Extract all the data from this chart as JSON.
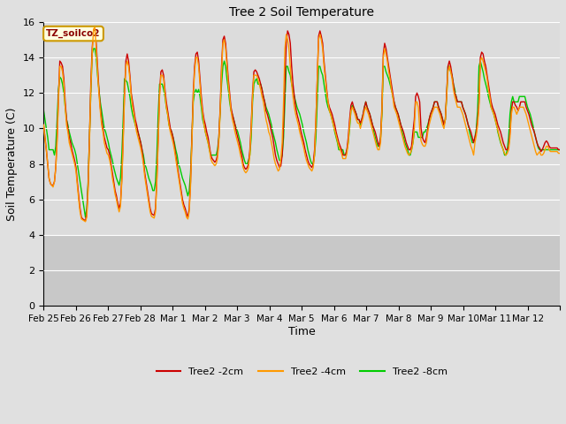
{
  "title": "Tree 2 Soil Temperature",
  "xlabel": "Time",
  "ylabel": "Soil Temperature (C)",
  "ylim": [
    0,
    16
  ],
  "yticks": [
    0,
    2,
    4,
    6,
    8,
    10,
    12,
    14,
    16
  ],
  "plot_bg_upper": "#dcdcdc",
  "plot_bg_lower": "#c8c8c8",
  "fig_bg_color": "#e0e0e0",
  "grid_color": "#ffffff",
  "line_colors": {
    "2cm": "#cc0000",
    "4cm": "#ff9900",
    "8cm": "#00cc00"
  },
  "legend_label_2cm": "Tree2 -2cm",
  "legend_label_4cm": "Tree2 -4cm",
  "legend_label_8cm": "Tree2 -8cm",
  "annotation_text": "TZ_soilco2",
  "xtick_labels": [
    "Feb 25",
    "Feb 26",
    "Feb 27",
    "Feb 28",
    "Mar 1",
    "Mar 2",
    "Mar 3",
    "Mar 4",
    "Mar 5",
    "Mar 6",
    "Mar 7",
    "Mar 8",
    "Mar 9",
    "Mar 10",
    "Mar 11",
    "Mar 12"
  ],
  "data_2cm": [
    10.2,
    9.5,
    8.8,
    8.0,
    7.2,
    6.9,
    6.8,
    6.8,
    7.0,
    7.8,
    9.5,
    11.8,
    13.8,
    13.7,
    13.5,
    12.8,
    11.5,
    10.5,
    10.0,
    9.5,
    9.2,
    8.8,
    8.5,
    8.2,
    7.8,
    7.0,
    6.2,
    5.5,
    5.0,
    4.9,
    4.85,
    4.8,
    5.2,
    6.8,
    9.5,
    12.5,
    14.5,
    15.5,
    15.6,
    14.8,
    13.5,
    12.2,
    11.2,
    10.5,
    10.0,
    9.5,
    9.2,
    8.9,
    8.8,
    8.5,
    8.0,
    7.5,
    7.0,
    6.5,
    6.2,
    5.8,
    5.5,
    5.8,
    7.2,
    9.5,
    12.0,
    13.8,
    14.2,
    13.8,
    13.0,
    12.0,
    11.5,
    11.0,
    10.5,
    10.2,
    9.8,
    9.5,
    9.2,
    8.8,
    8.2,
    7.5,
    7.0,
    6.5,
    6.0,
    5.5,
    5.2,
    5.15,
    5.1,
    5.5,
    7.2,
    9.5,
    12.0,
    13.2,
    13.3,
    13.0,
    12.2,
    11.5,
    11.0,
    10.5,
    10.0,
    9.8,
    9.5,
    9.0,
    8.5,
    8.0,
    7.5,
    7.0,
    6.5,
    6.0,
    5.7,
    5.5,
    5.2,
    5.0,
    5.5,
    7.0,
    9.5,
    12.0,
    13.5,
    14.2,
    14.3,
    13.8,
    12.8,
    11.8,
    11.0,
    10.5,
    10.2,
    9.8,
    9.5,
    9.0,
    8.5,
    8.3,
    8.2,
    8.1,
    8.2,
    8.5,
    9.5,
    11.2,
    13.5,
    15.0,
    15.2,
    14.8,
    13.8,
    12.8,
    12.0,
    11.2,
    10.8,
    10.5,
    10.2,
    9.8,
    9.5,
    9.2,
    8.8,
    8.5,
    8.0,
    7.8,
    7.7,
    7.8,
    8.0,
    8.8,
    10.2,
    12.0,
    13.2,
    13.3,
    13.2,
    13.0,
    12.8,
    12.5,
    12.2,
    11.8,
    11.5,
    11.0,
    10.8,
    10.5,
    10.2,
    9.8,
    9.5,
    9.0,
    8.5,
    8.2,
    8.0,
    7.8,
    7.9,
    8.5,
    10.2,
    12.5,
    14.8,
    15.5,
    15.3,
    14.8,
    13.5,
    12.5,
    11.8,
    11.2,
    10.8,
    10.5,
    10.2,
    9.8,
    9.5,
    9.2,
    8.8,
    8.5,
    8.2,
    8.0,
    7.9,
    7.8,
    8.0,
    8.8,
    10.5,
    12.8,
    15.2,
    15.5,
    15.2,
    14.8,
    13.8,
    13.0,
    12.2,
    11.5,
    11.2,
    11.0,
    10.8,
    10.5,
    10.2,
    9.8,
    9.5,
    9.2,
    9.0,
    8.8,
    8.5,
    8.5,
    8.5,
    8.8,
    9.5,
    10.5,
    11.3,
    11.5,
    11.2,
    11.0,
    10.8,
    10.5,
    10.5,
    10.3,
    10.5,
    10.8,
    11.2,
    11.5,
    11.2,
    11.0,
    10.8,
    10.5,
    10.2,
    10.0,
    9.8,
    9.5,
    9.2,
    9.0,
    9.5,
    11.2,
    14.2,
    14.8,
    14.5,
    14.0,
    13.5,
    13.0,
    12.5,
    12.0,
    11.5,
    11.2,
    11.0,
    10.8,
    10.5,
    10.2,
    10.0,
    9.8,
    9.5,
    9.2,
    9.0,
    8.8,
    8.8,
    9.0,
    9.8,
    10.5,
    11.8,
    12.0,
    11.8,
    11.5,
    10.0,
    9.5,
    9.3,
    9.2,
    9.5,
    10.0,
    10.5,
    10.8,
    11.0,
    11.2,
    11.5,
    11.5,
    11.5,
    11.2,
    11.0,
    10.8,
    10.5,
    10.2,
    10.5,
    12.0,
    13.5,
    13.8,
    13.5,
    13.0,
    12.5,
    12.0,
    11.8,
    11.5,
    11.5,
    11.5,
    11.5,
    11.2,
    11.0,
    10.8,
    10.5,
    10.2,
    10.0,
    9.8,
    9.5,
    9.2,
    9.5,
    9.8,
    10.5,
    11.5,
    14.0,
    14.3,
    14.2,
    13.8,
    13.5,
    13.0,
    12.5,
    12.0,
    11.5,
    11.2,
    11.0,
    10.8,
    10.5,
    10.2,
    10.0,
    9.8,
    9.5,
    9.2,
    9.0,
    8.8,
    8.8,
    9.0,
    9.8,
    11.0,
    11.5,
    11.5,
    11.3,
    11.2,
    11.0,
    11.2,
    11.5,
    11.5,
    11.5,
    11.5,
    11.2,
    11.0,
    10.8,
    10.5,
    10.2,
    10.0,
    9.8,
    9.5,
    9.2,
    9.0,
    8.9,
    8.7,
    8.8,
    9.0,
    9.2,
    9.3,
    9.2,
    9.0,
    8.9,
    8.9,
    8.9,
    8.9,
    8.9,
    8.9,
    8.8,
    8.8
  ],
  "data_4cm": [
    10.2,
    9.4,
    8.8,
    8.0,
    7.2,
    6.9,
    6.8,
    6.7,
    7.0,
    7.8,
    9.2,
    11.5,
    13.5,
    13.5,
    13.2,
    12.5,
    11.2,
    10.2,
    9.8,
    9.2,
    8.9,
    8.6,
    8.3,
    8.0,
    7.6,
    6.8,
    6.0,
    5.3,
    4.9,
    4.85,
    4.8,
    4.75,
    5.0,
    6.5,
    9.2,
    12.2,
    14.2,
    15.6,
    15.7,
    14.5,
    13.2,
    12.0,
    11.0,
    10.2,
    9.8,
    9.2,
    8.9,
    8.6,
    8.5,
    8.2,
    7.8,
    7.2,
    6.8,
    6.3,
    6.0,
    5.6,
    5.3,
    5.6,
    7.0,
    9.2,
    11.8,
    13.5,
    13.8,
    13.5,
    12.8,
    11.8,
    11.2,
    10.8,
    10.2,
    9.8,
    9.5,
    9.2,
    8.9,
    8.5,
    8.0,
    7.3,
    6.8,
    6.3,
    5.8,
    5.3,
    5.05,
    5.0,
    4.95,
    5.3,
    7.0,
    9.2,
    11.8,
    13.0,
    13.0,
    12.8,
    12.0,
    11.2,
    10.8,
    10.2,
    9.8,
    9.5,
    9.2,
    8.8,
    8.3,
    7.8,
    7.3,
    6.8,
    6.3,
    5.8,
    5.5,
    5.3,
    5.0,
    4.9,
    5.3,
    6.8,
    9.2,
    11.8,
    13.2,
    14.0,
    14.0,
    13.5,
    12.5,
    11.5,
    10.8,
    10.2,
    9.8,
    9.5,
    9.2,
    8.8,
    8.3,
    8.1,
    8.0,
    7.9,
    8.0,
    8.3,
    9.2,
    11.0,
    13.2,
    14.8,
    15.0,
    14.5,
    13.5,
    12.5,
    11.8,
    11.0,
    10.5,
    10.2,
    9.8,
    9.5,
    9.2,
    8.9,
    8.5,
    8.2,
    7.8,
    7.6,
    7.5,
    7.6,
    7.8,
    8.5,
    10.0,
    11.8,
    13.0,
    13.0,
    13.0,
    12.8,
    12.5,
    12.2,
    11.8,
    11.5,
    11.0,
    10.5,
    10.2,
    9.8,
    9.6,
    9.2,
    8.8,
    8.3,
    8.0,
    7.8,
    7.6,
    7.7,
    8.3,
    9.2,
    11.5,
    14.5,
    15.3,
    15.0,
    14.5,
    13.5,
    12.5,
    11.8,
    11.2,
    10.8,
    10.5,
    10.2,
    9.8,
    9.5,
    9.2,
    8.9,
    8.5,
    8.2,
    8.0,
    7.8,
    7.7,
    7.6,
    7.8,
    8.5,
    10.5,
    12.8,
    15.0,
    15.3,
    15.0,
    14.5,
    13.5,
    12.8,
    12.0,
    11.5,
    11.0,
    10.8,
    10.5,
    10.2,
    9.9,
    9.6,
    9.3,
    9.0,
    8.8,
    8.6,
    8.3,
    8.3,
    8.3,
    8.6,
    9.2,
    10.2,
    11.0,
    11.2,
    11.0,
    10.8,
    10.5,
    10.3,
    10.3,
    10.0,
    10.3,
    10.6,
    11.0,
    11.2,
    11.0,
    10.8,
    10.5,
    10.2,
    9.9,
    9.6,
    9.3,
    9.0,
    8.8,
    8.8,
    9.2,
    11.0,
    14.0,
    14.5,
    14.2,
    13.8,
    13.2,
    12.8,
    12.2,
    11.8,
    11.2,
    11.0,
    10.8,
    10.5,
    10.2,
    9.9,
    9.6,
    9.3,
    9.0,
    8.8,
    8.6,
    8.5,
    8.6,
    8.8,
    9.2,
    10.0,
    11.5,
    11.5,
    11.2,
    10.0,
    9.3,
    9.1,
    9.0,
    9.0,
    9.2,
    9.8,
    10.2,
    10.5,
    10.8,
    11.0,
    11.2,
    11.2,
    11.2,
    11.0,
    10.8,
    10.5,
    10.2,
    10.0,
    10.5,
    11.8,
    13.2,
    13.5,
    13.2,
    12.8,
    12.2,
    11.8,
    11.5,
    11.2,
    11.2,
    11.2,
    11.0,
    10.8,
    10.5,
    10.2,
    9.9,
    9.6,
    9.3,
    9.0,
    8.8,
    8.5,
    9.2,
    9.6,
    10.2,
    11.2,
    13.8,
    14.0,
    13.8,
    13.5,
    13.2,
    12.8,
    12.2,
    11.8,
    11.2,
    11.0,
    10.8,
    10.5,
    10.2,
    9.9,
    9.6,
    9.3,
    9.0,
    8.8,
    8.6,
    8.5,
    8.6,
    8.8,
    9.5,
    10.8,
    11.2,
    11.2,
    11.0,
    10.8,
    11.0,
    11.2,
    11.2,
    11.2,
    11.2,
    11.0,
    10.8,
    10.5,
    10.2,
    9.9,
    9.6,
    9.3,
    9.0,
    8.7,
    8.5,
    8.6,
    8.7,
    8.5,
    8.5,
    8.6,
    8.8,
    9.0,
    9.0,
    8.8,
    8.7,
    8.7,
    8.7,
    8.7,
    8.7,
    8.7,
    8.6,
    8.6
  ],
  "data_8cm": [
    11.0,
    10.5,
    10.0,
    9.5,
    8.8,
    8.8,
    8.8,
    8.8,
    8.5,
    9.0,
    10.5,
    12.2,
    12.9,
    12.8,
    12.5,
    12.0,
    11.2,
    10.5,
    10.2,
    9.8,
    9.5,
    9.2,
    9.0,
    8.8,
    8.5,
    8.0,
    7.5,
    7.0,
    6.5,
    6.0,
    5.5,
    5.0,
    5.5,
    7.0,
    9.5,
    12.0,
    14.2,
    14.5,
    14.5,
    14.0,
    13.0,
    12.2,
    11.5,
    11.0,
    10.5,
    10.0,
    9.8,
    9.5,
    9.2,
    8.8,
    8.5,
    8.2,
    7.8,
    7.5,
    7.2,
    7.0,
    6.8,
    7.2,
    8.5,
    10.5,
    12.8,
    12.7,
    12.6,
    12.2,
    11.8,
    11.2,
    10.8,
    10.5,
    10.2,
    10.0,
    9.8,
    9.5,
    9.2,
    8.8,
    8.5,
    8.0,
    7.8,
    7.5,
    7.2,
    7.0,
    6.8,
    6.5,
    6.5,
    7.0,
    8.5,
    10.8,
    12.5,
    12.5,
    12.5,
    12.2,
    11.8,
    11.2,
    10.8,
    10.2,
    10.0,
    9.8,
    9.5,
    9.2,
    8.8,
    8.5,
    8.0,
    7.8,
    7.5,
    7.2,
    7.0,
    6.8,
    6.5,
    6.2,
    6.5,
    7.5,
    9.5,
    11.5,
    12.0,
    12.2,
    12.0,
    12.2,
    11.8,
    11.2,
    10.5,
    10.2,
    9.8,
    9.5,
    9.2,
    8.8,
    8.5,
    8.5,
    8.5,
    8.5,
    8.5,
    8.8,
    9.5,
    11.0,
    12.5,
    13.5,
    13.8,
    13.5,
    12.8,
    12.2,
    11.5,
    11.0,
    10.8,
    10.5,
    10.2,
    10.0,
    9.8,
    9.5,
    9.2,
    8.8,
    8.5,
    8.2,
    8.0,
    8.0,
    8.2,
    8.5,
    9.5,
    11.5,
    12.5,
    12.7,
    12.8,
    12.5,
    12.5,
    12.5,
    12.2,
    11.8,
    11.5,
    11.2,
    11.0,
    10.8,
    10.5,
    10.2,
    9.8,
    9.5,
    9.2,
    8.8,
    8.5,
    8.2,
    8.2,
    8.5,
    9.5,
    11.5,
    13.5,
    13.5,
    13.2,
    13.0,
    12.5,
    12.2,
    11.8,
    11.5,
    11.2,
    11.0,
    10.8,
    10.5,
    10.2,
    9.8,
    9.5,
    9.2,
    8.8,
    8.5,
    8.2,
    8.0,
    8.0,
    8.5,
    9.5,
    11.5,
    13.5,
    13.5,
    13.2,
    13.0,
    12.5,
    12.0,
    11.5,
    11.2,
    11.0,
    10.8,
    10.5,
    10.2,
    9.8,
    9.5,
    9.2,
    8.8,
    8.8,
    8.8,
    8.8,
    8.5,
    8.5,
    8.8,
    9.2,
    10.0,
    11.0,
    11.3,
    11.2,
    11.0,
    10.8,
    10.5,
    10.5,
    10.2,
    10.5,
    10.8,
    11.2,
    11.5,
    11.2,
    11.0,
    10.8,
    10.5,
    10.2,
    9.8,
    9.5,
    9.2,
    9.0,
    9.0,
    9.5,
    10.8,
    13.5,
    13.5,
    13.2,
    13.0,
    12.8,
    12.5,
    12.2,
    11.8,
    11.5,
    11.2,
    11.0,
    10.8,
    10.5,
    10.2,
    9.8,
    9.5,
    9.2,
    9.0,
    8.8,
    8.5,
    8.5,
    8.8,
    9.2,
    9.8,
    9.8,
    9.8,
    9.5,
    9.5,
    9.5,
    9.5,
    9.8,
    9.8,
    10.0,
    10.2,
    10.5,
    10.8,
    11.0,
    11.2,
    11.5,
    11.5,
    11.5,
    11.2,
    11.0,
    10.8,
    10.5,
    10.2,
    10.5,
    11.8,
    13.5,
    13.5,
    13.2,
    13.0,
    12.5,
    12.2,
    11.8,
    11.5,
    11.5,
    11.5,
    11.5,
    11.2,
    11.0,
    10.8,
    10.5,
    10.2,
    9.8,
    9.5,
    9.2,
    9.2,
    9.5,
    10.0,
    11.0,
    13.5,
    13.8,
    13.5,
    13.2,
    12.8,
    12.5,
    12.2,
    11.8,
    11.5,
    11.2,
    11.0,
    10.8,
    10.5,
    10.2,
    9.8,
    9.5,
    9.2,
    9.0,
    8.8,
    8.5,
    8.5,
    8.8,
    9.5,
    10.8,
    11.5,
    11.8,
    11.5,
    11.5,
    11.5,
    11.5,
    11.8,
    11.8,
    11.8,
    11.8,
    11.8,
    11.5,
    11.2,
    11.0,
    10.8,
    10.5,
    10.2,
    9.8,
    9.5,
    9.2,
    8.9,
    8.8,
    8.8,
    8.8,
    8.8,
    8.8,
    8.8,
    8.8,
    8.8,
    8.8,
    8.8,
    8.8,
    8.8,
    8.8,
    8.8,
    8.8,
    8.8
  ]
}
